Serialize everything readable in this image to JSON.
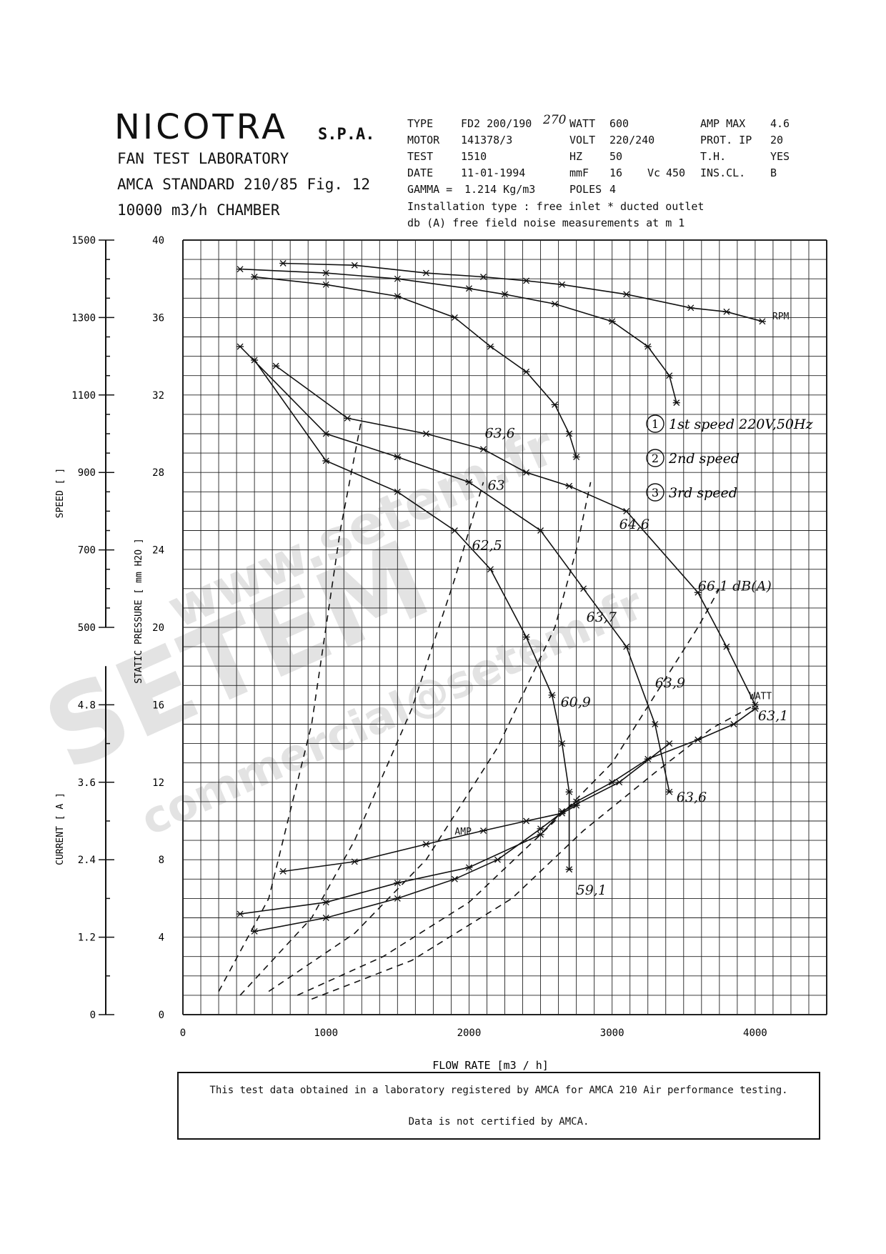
{
  "header": {
    "brand": "NICOTRA",
    "brand_suffix": "S.P.A.",
    "lab_lines": [
      "FAN TEST LABORATORY",
      "AMCA STANDARD 210/85 Fig. 12",
      "10000 m3/h  CHAMBER"
    ],
    "specs": [
      {
        "label": "TYPE",
        "value": "FD2 200/190"
      },
      {
        "label": "MOTOR",
        "value": "141378/3"
      },
      {
        "label": "TEST",
        "value": "1510"
      },
      {
        "label": "DATE",
        "value": "11-01-1994"
      },
      {
        "label": "GAMMA =",
        "value": "1.214 Kg/m3"
      },
      {
        "label": "WATT",
        "value": "600"
      },
      {
        "label": "VOLT",
        "value": "220/240"
      },
      {
        "label": "HZ",
        "value": "50"
      },
      {
        "label": "mmF",
        "value": "16"
      },
      {
        "label": "Vc",
        "value": "450"
      },
      {
        "label": "POLES",
        "value": "4"
      },
      {
        "label": "AMP MAX",
        "value": "4.6"
      },
      {
        "label": "PROT. IP",
        "value": "20"
      },
      {
        "label": "T.H.",
        "value": "YES"
      },
      {
        "label": "INS.CL.",
        "value": "B"
      }
    ],
    "handwritten_type": "270",
    "install_line": "Installation type : free inlet * ducted outlet",
    "noise_line": "db (A)  free field noise measurements at m  1"
  },
  "chart_data": {
    "type": "line",
    "title": "",
    "xlabel": "FLOW RATE  [m3 / h]",
    "x_ticks": [
      0,
      1000,
      2000,
      3000,
      4000
    ],
    "xlim": [
      0,
      4500
    ],
    "pressure_axis": {
      "label": "STATIC PRESSURE  [ mm H2O ]",
      "ticks": [
        0,
        4,
        8,
        12,
        16,
        20,
        24,
        28,
        32,
        36,
        40
      ],
      "range": [
        0,
        40
      ]
    },
    "speed_axis": {
      "label": "SPEED  [  ]",
      "ticks": [
        500,
        700,
        900,
        1100,
        1300,
        1500
      ],
      "range": [
        500,
        1500
      ]
    },
    "current_axis": {
      "label": "CURRENT  [ A ]",
      "ticks": [
        0,
        1.2,
        2.4,
        3.6,
        4.8
      ],
      "range": [
        0,
        6
      ]
    },
    "series": [
      {
        "name": "",
        "axis": "pressure",
        "marker": "star",
        "points": [
          [
            400,
            34.5
          ],
          [
            1000,
            30
          ],
          [
            1500,
            28.8
          ],
          [
            2000,
            27.5
          ],
          [
            2500,
            25
          ],
          [
            2800,
            22
          ],
          [
            3100,
            19
          ],
          [
            3300,
            15
          ],
          [
            3400,
            11.5
          ]
        ]
      },
      {
        "name": "",
        "axis": "pressure",
        "marker": "star",
        "points": [
          [
            650,
            33.5
          ],
          [
            1150,
            30.8
          ],
          [
            1700,
            30
          ],
          [
            2100,
            29.2
          ],
          [
            2400,
            28
          ],
          [
            2700,
            27.3
          ],
          [
            3100,
            26
          ],
          [
            3600,
            21.8
          ],
          [
            3800,
            19
          ],
          [
            4000,
            16
          ]
        ]
      },
      {
        "name": "",
        "axis": "pressure",
        "marker": "star",
        "points": [
          [
            500,
            33.8
          ],
          [
            1000,
            28.6
          ],
          [
            1500,
            27
          ],
          [
            1900,
            25
          ],
          [
            2150,
            23
          ],
          [
            2400,
            19.5
          ],
          [
            2580,
            16.5
          ],
          [
            2650,
            14
          ],
          [
            2700,
            11.5
          ],
          [
            2700,
            7.5
          ]
        ]
      },
      {
        "name": "RPM",
        "axis": "pressure",
        "marker": "star",
        "points": [
          [
            700,
            38.8
          ],
          [
            1200,
            38.7
          ],
          [
            1700,
            38.3
          ],
          [
            2100,
            38.1
          ],
          [
            2400,
            37.9
          ],
          [
            2650,
            37.7
          ],
          [
            3100,
            37.2
          ],
          [
            3550,
            36.5
          ],
          [
            3800,
            36.3
          ],
          [
            4050,
            35.8
          ]
        ]
      },
      {
        "name": "",
        "axis": "pressure",
        "marker": "star",
        "points": [
          [
            400,
            38.5
          ],
          [
            1000,
            38.3
          ],
          [
            1500,
            38
          ],
          [
            2000,
            37.5
          ],
          [
            2250,
            37.2
          ],
          [
            2600,
            36.7
          ],
          [
            3000,
            35.8
          ],
          [
            3250,
            34.5
          ],
          [
            3400,
            33
          ],
          [
            3450,
            31.6
          ]
        ]
      },
      {
        "name": "",
        "axis": "pressure",
        "marker": "star",
        "points": [
          [
            500,
            38.1
          ],
          [
            1000,
            37.7
          ],
          [
            1500,
            37.1
          ],
          [
            1900,
            36
          ],
          [
            2150,
            34.5
          ],
          [
            2400,
            33.2
          ],
          [
            2600,
            31.5
          ],
          [
            2700,
            30
          ],
          [
            2750,
            28.8
          ]
        ]
      },
      {
        "name": "AMP",
        "axis": "pressure",
        "marker": "star",
        "points": [
          [
            700,
            7.4
          ],
          [
            1200,
            7.9
          ],
          [
            1700,
            8.8
          ],
          [
            2100,
            9.5
          ],
          [
            2400,
            10
          ],
          [
            2650,
            10.4
          ],
          [
            2750,
            10.8
          ]
        ]
      },
      {
        "name": "",
        "axis": "pressure",
        "marker": "star",
        "points": [
          [
            400,
            5.2
          ],
          [
            1000,
            5.8
          ],
          [
            1500,
            6.8
          ],
          [
            2000,
            7.6
          ],
          [
            2500,
            9.3
          ],
          [
            2650,
            10.5
          ],
          [
            3050,
            12
          ],
          [
            3400,
            14
          ]
        ]
      },
      {
        "name": "",
        "axis": "pressure",
        "marker": "star",
        "points": [
          [
            500,
            4.3
          ],
          [
            1000,
            5
          ],
          [
            1500,
            6
          ],
          [
            1900,
            7
          ],
          [
            2200,
            8
          ],
          [
            2500,
            9.6
          ],
          [
            2750,
            11
          ],
          [
            3000,
            12
          ],
          [
            3250,
            13.2
          ],
          [
            3600,
            14.2
          ],
          [
            3850,
            15
          ],
          [
            4000,
            15.8
          ]
        ]
      },
      {
        "name": "",
        "axis": "pressure",
        "dashed": true,
        "marker": "none",
        "points": [
          [
            250,
            1.2
          ],
          [
            600,
            6
          ],
          [
            900,
            15
          ],
          [
            1100,
            25
          ],
          [
            1250,
            30.8
          ]
        ]
      },
      {
        "name": "",
        "axis": "pressure",
        "dashed": true,
        "marker": "none",
        "points": [
          [
            400,
            1
          ],
          [
            900,
            5
          ],
          [
            1200,
            9
          ],
          [
            1600,
            15.8
          ],
          [
            1900,
            22.5
          ],
          [
            2100,
            27.5
          ]
        ]
      },
      {
        "name": "",
        "axis": "pressure",
        "dashed": true,
        "marker": "none",
        "points": [
          [
            600,
            1.2
          ],
          [
            1200,
            4.2
          ],
          [
            1700,
            8
          ],
          [
            2200,
            13.8
          ],
          [
            2600,
            20
          ],
          [
            2750,
            24
          ],
          [
            2850,
            27.5
          ]
        ]
      },
      {
        "name": "",
        "axis": "pressure",
        "dashed": true,
        "marker": "none",
        "points": [
          [
            800,
            1
          ],
          [
            1400,
            3
          ],
          [
            2000,
            5.8
          ],
          [
            2600,
            10
          ],
          [
            3000,
            13
          ],
          [
            3300,
            16.5
          ],
          [
            3600,
            20
          ],
          [
            3750,
            22
          ]
        ]
      },
      {
        "name": "",
        "axis": "pressure",
        "dashed": true,
        "marker": "none",
        "points": [
          [
            900,
            0.8
          ],
          [
            1600,
            2.8
          ],
          [
            2300,
            6
          ],
          [
            2800,
            9.5
          ],
          [
            3300,
            12.5
          ],
          [
            3700,
            14.8
          ],
          [
            4000,
            16
          ]
        ]
      }
    ],
    "annotations": [
      {
        "text": "63,6",
        "x": 2110,
        "y": 29.8
      },
      {
        "text": "63",
        "x": 2130,
        "y": 27.1
      },
      {
        "text": "62,5",
        "x": 2020,
        "y": 24
      },
      {
        "text": "64,6",
        "x": 3050,
        "y": 25.1
      },
      {
        "text": "66,1 dB(A)",
        "x": 3600,
        "y": 21.9
      },
      {
        "text": "63,7",
        "x": 2820,
        "y": 20.3
      },
      {
        "text": "63,9",
        "x": 3300,
        "y": 16.9
      },
      {
        "text": "60,9",
        "x": 2640,
        "y": 15.9
      },
      {
        "text": "63,1",
        "x": 4020,
        "y": 15.2
      },
      {
        "text": "63,6",
        "x": 3450,
        "y": 11
      },
      {
        "text": "59,1",
        "x": 2750,
        "y": 6.2
      },
      {
        "text": "RPM",
        "x": 4120,
        "y": 35.9
      },
      {
        "text": "WATT",
        "x": 3960,
        "y": 16.3
      },
      {
        "text": "AMP",
        "x": 1900,
        "y": 9.3
      }
    ],
    "legend": [
      {
        "marker": "1",
        "text": "1st speed  220V,50Hz"
      },
      {
        "marker": "2",
        "text": "2nd speed"
      },
      {
        "marker": "3",
        "text": "3rd speed"
      }
    ],
    "grid": true
  },
  "watermark": {
    "lines": [
      "www.setem.fr",
      "SETEM",
      "commercial@setem.fr"
    ]
  },
  "footer": {
    "note1": "This test data obtained in a laboratory registered by AMCA for AMCA 210 Air performance testing.",
    "note2": "Data is not certified by AMCA."
  }
}
